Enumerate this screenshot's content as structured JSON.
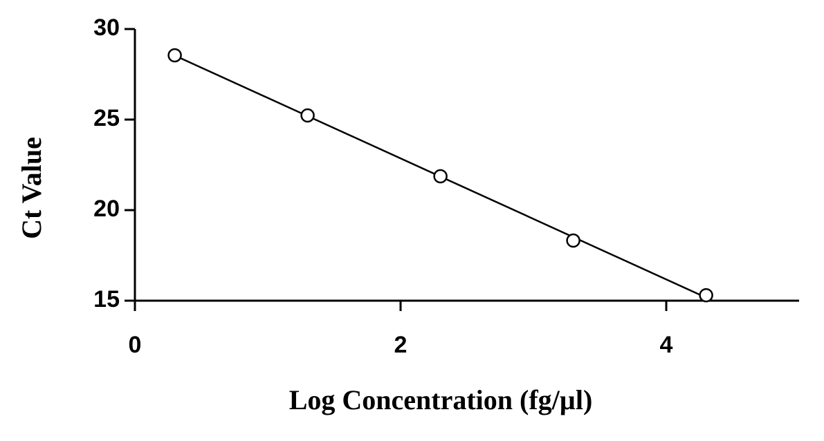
{
  "chart_data": {
    "type": "scatter",
    "x_label": "Log Concentration (fg/µl)",
    "y_label": "Ct Value",
    "series": [
      {
        "x": [
          0.3,
          1.3,
          2.3,
          3.3,
          4.3
        ],
        "values": [
          28.55,
          25.23,
          21.87,
          18.32,
          15.3
        ],
        "color": "#000000"
      }
    ],
    "trendline": true,
    "xlim": [
      0,
      5
    ],
    "xticks": [
      0,
      2,
      4
    ],
    "ylim": [
      15,
      30
    ],
    "yticks": [
      15,
      20,
      25,
      30
    ],
    "grid": false
  }
}
